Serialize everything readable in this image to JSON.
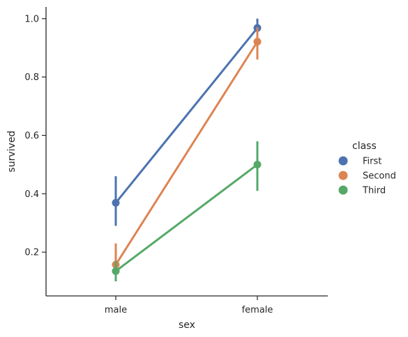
{
  "chart_data": {
    "type": "line",
    "xlabel": "sex",
    "ylabel": "survived",
    "categories": [
      "male",
      "female"
    ],
    "ylim": [
      0.05,
      1.04
    ],
    "yticks": [
      0.2,
      0.4,
      0.6,
      0.8,
      1.0
    ],
    "ytick_labels": [
      "0.2",
      "0.4",
      "0.6",
      "0.8",
      "1.0"
    ],
    "grid": false,
    "legend": {
      "title": "class",
      "placement": "right"
    },
    "series": [
      {
        "name": "First",
        "color": "#4c72b0",
        "values": [
          0.369,
          0.968
        ],
        "ci_low": [
          0.29,
          0.93
        ],
        "ci_high": [
          0.46,
          1.0
        ]
      },
      {
        "name": "Second",
        "color": "#dd8452",
        "values": [
          0.157,
          0.921
        ],
        "ci_low": [
          0.1,
          0.86
        ],
        "ci_high": [
          0.23,
          0.97
        ]
      },
      {
        "name": "Third",
        "color": "#55a868",
        "values": [
          0.135,
          0.5
        ],
        "ci_low": [
          0.1,
          0.41
        ],
        "ci_high": [
          0.17,
          0.58
        ]
      }
    ]
  }
}
